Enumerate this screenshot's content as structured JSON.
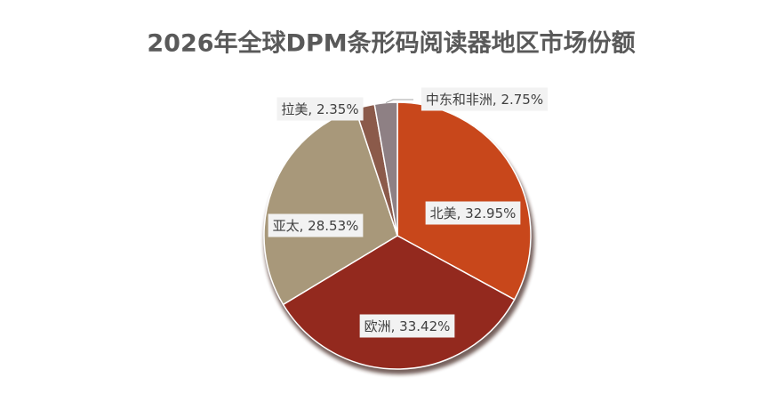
{
  "chart_data": {
    "type": "pie",
    "title": "2026年全球DPM条形码阅读器地区市场份额",
    "categories": [
      "北美",
      "欧洲",
      "亚太",
      "拉美",
      "中东和非洲"
    ],
    "values": [
      32.95,
      33.42,
      28.53,
      2.35,
      2.75
    ],
    "value_labels": [
      ", 32.95%",
      ", 33.42%",
      ", 28.53%",
      ", 2.35%",
      ", 2.75%"
    ],
    "colors": [
      "#c8471b",
      "#93291e",
      "#a8987a",
      "#8b5a4a",
      "#8e8084"
    ]
  }
}
